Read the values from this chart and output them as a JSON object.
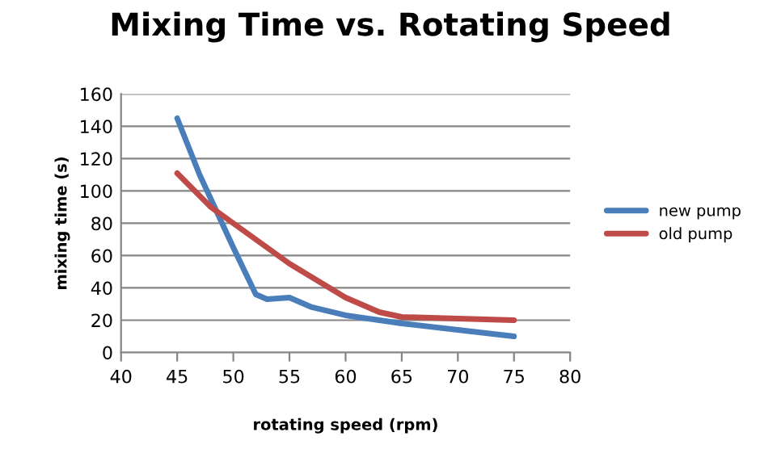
{
  "chart_data": {
    "type": "line",
    "title": "Mixing Time vs. Rotating Speed",
    "xlabel": "rotating speed (rpm)",
    "ylabel": "mixing time (s)",
    "series": [
      {
        "name": "new pump",
        "color": "#4a7ebb",
        "x": [
          45,
          47,
          50,
          52,
          53,
          55,
          57,
          60,
          65,
          70,
          75
        ],
        "values": [
          145,
          110,
          65,
          36,
          33,
          34,
          28,
          23,
          18,
          14,
          10
        ]
      },
      {
        "name": "old pump",
        "color": "#be4b48",
        "x": [
          45,
          48,
          50,
          55,
          60,
          63,
          65,
          70,
          75
        ],
        "values": [
          111,
          90,
          80,
          55,
          34,
          25,
          22,
          21,
          20
        ]
      }
    ],
    "xlim": [
      40,
      80
    ],
    "xticks": [
      40,
      45,
      50,
      55,
      60,
      65,
      70,
      75,
      80
    ],
    "ylim": [
      0,
      160
    ],
    "yticks": [
      0,
      20,
      40,
      60,
      80,
      100,
      120,
      140,
      160
    ],
    "grid": "y",
    "legend": "right",
    "marker": "none",
    "line_style": "solid"
  }
}
